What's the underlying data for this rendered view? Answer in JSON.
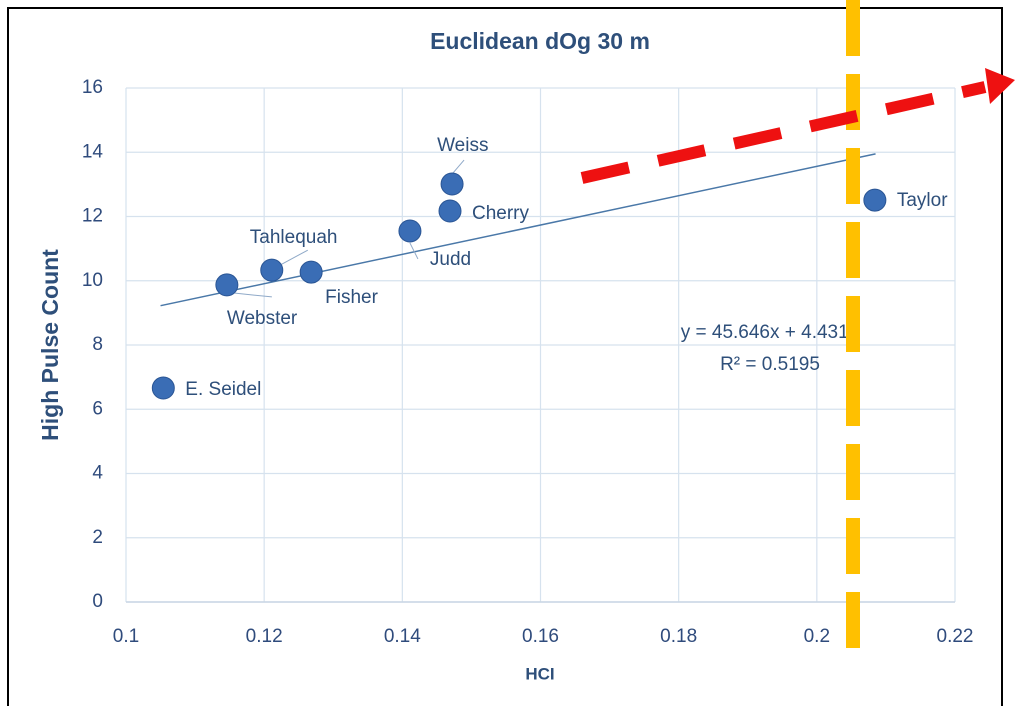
{
  "chart_data": {
    "type": "scatter",
    "title": "Euclidean dOg 30 m",
    "x_label": "HCI",
    "y_label": "High Pulse Count",
    "x": [
      0.1054,
      0.1146,
      0.1211,
      0.1268,
      0.1411,
      0.1472,
      0.1469,
      0.2084
    ],
    "values": [
      6.66,
      9.87,
      10.33,
      10.27,
      11.55,
      13.01,
      12.17,
      12.51
    ],
    "labels": [
      "E. Seidel",
      "Webster",
      "Tahlequah",
      "Fisher",
      "Judd",
      "Weiss",
      "Cherry",
      "Taylor"
    ],
    "color": "#3a6db5",
    "xlim": [
      0.1,
      0.22
    ],
    "xticks": [
      0.1,
      0.12,
      0.14,
      0.16,
      0.18,
      0.2,
      0.22
    ],
    "ylim": [
      0,
      16
    ],
    "yticks": [
      0,
      2,
      4,
      6,
      8,
      10,
      12,
      14,
      16
    ],
    "grid": true,
    "trendline": {
      "slope": 45.646,
      "intercept": 4.4313,
      "x_range": [
        0.105,
        0.2085
      ],
      "color": "#4a78a8",
      "equation": "y = 45.646x + 4.4313",
      "r_squared": "R² = 0.5195"
    }
  }
}
